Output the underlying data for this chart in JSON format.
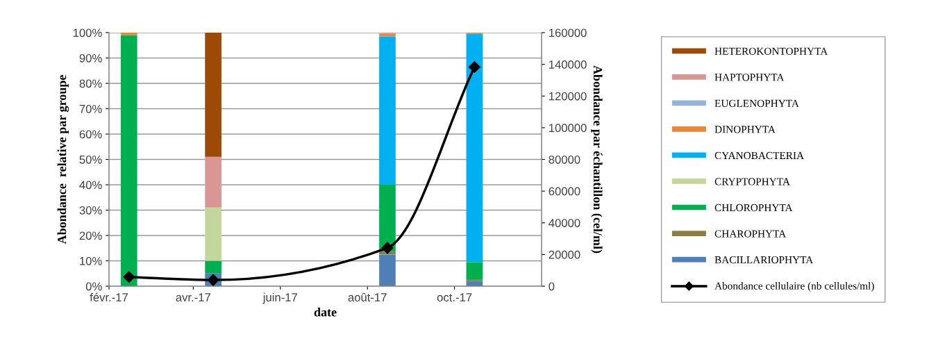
{
  "chart_data": {
    "type": "bar",
    "stacked": true,
    "x": [
      "2017-02-15",
      "2017-04-15",
      "2017-08-15",
      "2017-10-15"
    ],
    "xlabel": "date",
    "ylabel": "Abondance  relative par groupe",
    "y2label": "Abondance par échantillon (cel/ml)",
    "xlim": [
      "2017-02-01",
      "2017-12-01"
    ],
    "xticks": [
      {
        "value": "2017-02-01",
        "label": "févr.-17"
      },
      {
        "value": "2017-04-01",
        "label": "avr.-17"
      },
      {
        "value": "2017-06-01",
        "label": "juin-17"
      },
      {
        "value": "2017-08-01",
        "label": "août-17"
      },
      {
        "value": "2017-10-01",
        "label": "oct.-17"
      }
    ],
    "ylim": [
      0,
      100
    ],
    "yticks": [
      {
        "value": 0,
        "label": "0%"
      },
      {
        "value": 10,
        "label": "10%"
      },
      {
        "value": 20,
        "label": "20%"
      },
      {
        "value": 30,
        "label": "30%"
      },
      {
        "value": 40,
        "label": "40%"
      },
      {
        "value": 50,
        "label": "50%"
      },
      {
        "value": 60,
        "label": "60%"
      },
      {
        "value": 70,
        "label": "70%"
      },
      {
        "value": 80,
        "label": "80%"
      },
      {
        "value": 90,
        "label": "90%"
      },
      {
        "value": 100,
        "label": "100%"
      }
    ],
    "y2lim": [
      0,
      160000
    ],
    "y2ticks": [
      0,
      20000,
      40000,
      60000,
      80000,
      100000,
      120000,
      140000,
      160000
    ],
    "grid": "y",
    "legend": "right",
    "series": [
      {
        "name": "BACILLARIOPHYTA",
        "color": "#4f7fb4",
        "values": [
          0,
          5,
          12.5,
          2
        ]
      },
      {
        "name": "CHAROPHYTA",
        "color": "#8c7d45",
        "values": [
          0,
          0,
          1,
          0.5
        ]
      },
      {
        "name": "CHLOROPHYTA",
        "color": "#00b050",
        "values": [
          99,
          5,
          26.5,
          7
        ]
      },
      {
        "name": "CRYPTOPHYTA",
        "color": "#c3d69b",
        "values": [
          0,
          21,
          0,
          0
        ]
      },
      {
        "name": "CYANOBACTERIA",
        "color": "#00b0f0",
        "values": [
          0,
          0,
          58.5,
          90
        ]
      },
      {
        "name": "DINOPHYTA",
        "color": "#e8873a",
        "values": [
          1,
          0,
          1,
          0.5
        ]
      },
      {
        "name": "EUGLENOPHYTA",
        "color": "#95b3d7",
        "values": [
          0,
          0,
          0,
          0
        ]
      },
      {
        "name": "HAPTOPHYTA",
        "color": "#d99694",
        "values": [
          0,
          20,
          0.5,
          0
        ]
      },
      {
        "name": "HETEROKONTOPHYTA",
        "color": "#9c4a06",
        "values": [
          0,
          49,
          0,
          0
        ]
      },
      {
        "name": "Abondance cellulaire (nb cellules/ml)",
        "type": "line",
        "axis": "y2",
        "color": "#000000",
        "marker": "diamond",
        "line_style": "solid",
        "values": [
          5800,
          3900,
          24200,
          138300
        ]
      }
    ]
  }
}
